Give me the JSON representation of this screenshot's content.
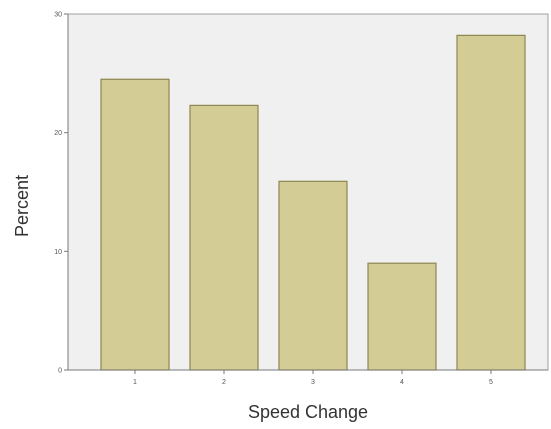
{
  "chart_data": {
    "type": "bar",
    "categories": [
      "1",
      "2",
      "3",
      "4",
      "5"
    ],
    "values": [
      24.5,
      22.3,
      15.9,
      9.0,
      28.2
    ],
    "xlabel": "Speed Change",
    "ylabel": "Percent",
    "ylim": [
      0,
      30
    ],
    "yticks": [
      "0",
      "10",
      "20",
      "30"
    ],
    "grid": false,
    "colors": {
      "plot_background": "#f0f0f0",
      "bar_fill": "#d3cc95",
      "bar_stroke": "#8e8650",
      "frame": "#a0a0a0"
    }
  }
}
